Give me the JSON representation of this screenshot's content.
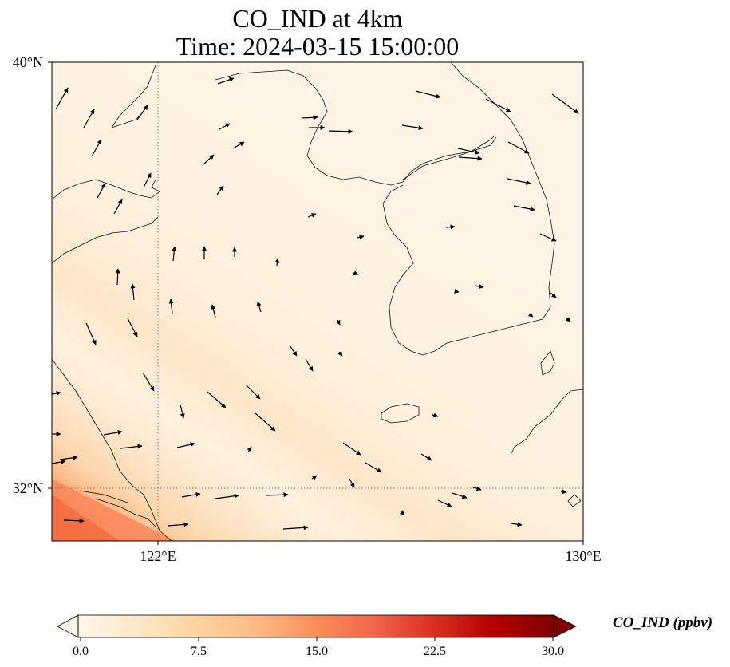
{
  "title": {
    "line1": "CO_IND at 4km",
    "line2": "Time: 2024-03-15 15:00:00"
  },
  "map": {
    "lon_range": [
      117,
      130
    ],
    "lat_range": [
      30.75,
      40
    ],
    "lat_ticks": [
      {
        "value": 32,
        "label": "32°N"
      },
      {
        "value": 40,
        "label": "40°N"
      }
    ],
    "lon_ticks": [
      {
        "value": 122,
        "label": "122°E"
      },
      {
        "value": 130,
        "label": "130°E"
      }
    ],
    "gridlines": "dotted at 122°E and 32°N",
    "background_field": "light orange CO concentration, higher (orange) toward southwest corner",
    "coastline": "black outline of eastern China, Shandong, Liaodong, Korean peninsula, Jeju"
  },
  "colorbar": {
    "min": 0.0,
    "max": 30.0,
    "ticks": [
      "0.0",
      "7.5",
      "15.0",
      "22.5",
      "30.0"
    ],
    "label": "CO_IND (ppbv)",
    "colormap": "OrRd",
    "extend": "both",
    "colors": [
      "#fff7ec",
      "#fee8c8",
      "#fdd49e",
      "#fdbb84",
      "#fc8d59",
      "#ef6548",
      "#d7301f",
      "#b30000",
      "#7f0000"
    ]
  }
}
